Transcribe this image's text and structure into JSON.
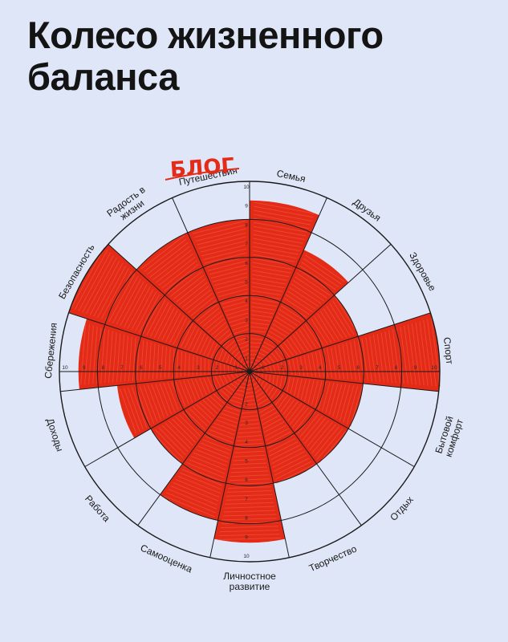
{
  "title": {
    "line1": "Колесо жизненного",
    "line2": "баланса"
  },
  "handwritten_note": "БЛОГ",
  "colors": {
    "background": "#dfe6f7",
    "ink": "#1a1a1a",
    "scribble": "#e32b17"
  },
  "scale": {
    "min": 0,
    "max": 10,
    "ticks": [
      1,
      2,
      3,
      4,
      5,
      6,
      7,
      8,
      9,
      10
    ]
  },
  "segments": [
    {
      "name": "Семья",
      "value": 9
    },
    {
      "name": "Друзья",
      "value": 7
    },
    {
      "name": "Здоровье",
      "value": 6
    },
    {
      "name": "Спорт",
      "value": 10
    },
    {
      "name": "Бытовой комфорт",
      "value": 6
    },
    {
      "name": "Отдых",
      "value": 6
    },
    {
      "name": "Творчество",
      "value": 6
    },
    {
      "name": "Личностное развитие",
      "value": 9
    },
    {
      "name": "Самооценка",
      "value": 8
    },
    {
      "name": "Работа",
      "value": 6
    },
    {
      "name": "Доходы",
      "value": 7
    },
    {
      "name": "Сбережения",
      "value": 9
    },
    {
      "name": "Безопасность",
      "value": 10
    },
    {
      "name": "Радость в жизни",
      "value": 8
    },
    {
      "name": "Путешествия",
      "value": 8
    }
  ]
}
